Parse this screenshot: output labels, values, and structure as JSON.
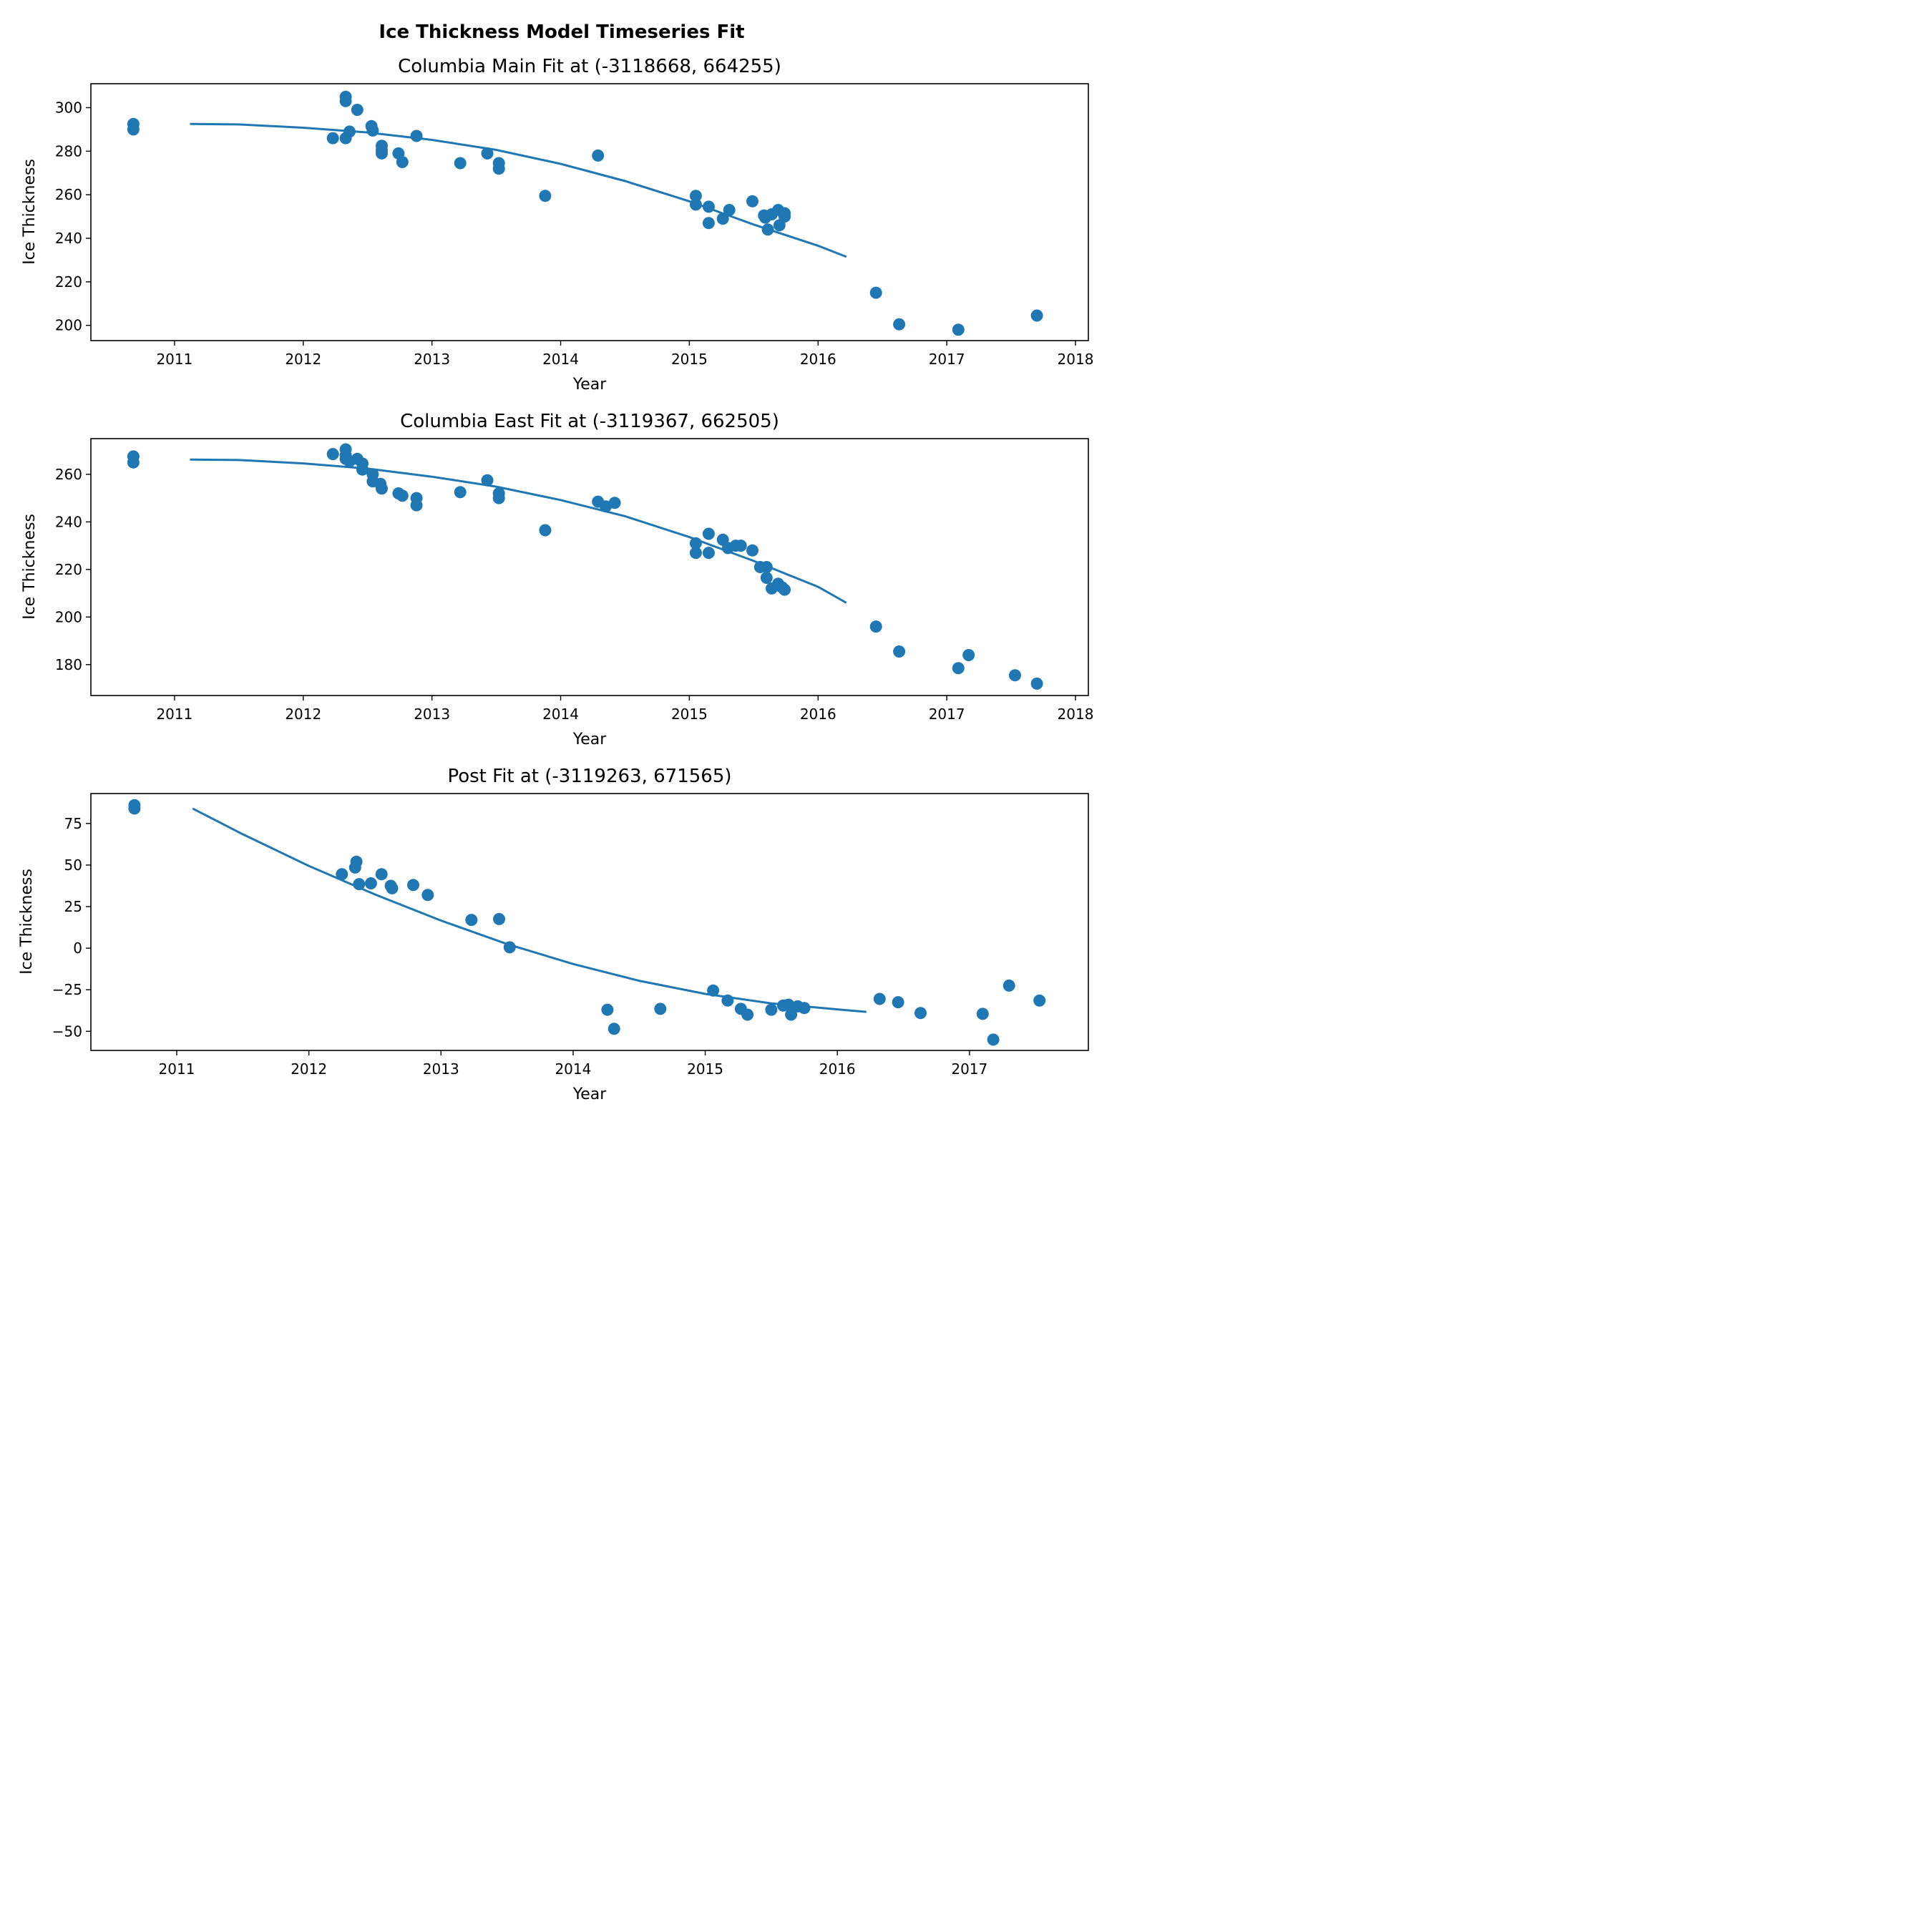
{
  "figure": {
    "suptitle": "Ice Thickness Model Timeseries Fit",
    "marker_color": "#1f77b4",
    "line_color": "#1f77b4"
  },
  "chart_data": [
    {
      "type": "scatter",
      "title": "Columbia Main Fit at (-3118668, 664255)",
      "xlabel": "Year",
      "ylabel": "Ice Thickness",
      "x_ticks": [
        "2011",
        "2012",
        "2013",
        "2014",
        "2015",
        "2016",
        "2017",
        "2018"
      ],
      "y_ticks": [
        200,
        220,
        240,
        260,
        280,
        300
      ],
      "xlim": [
        2010.35,
        2018.1
      ],
      "ylim": [
        193,
        311
      ],
      "grid": false,
      "legend": "none",
      "points": [
        [
          2010.68,
          292.5
        ],
        [
          2010.68,
          290
        ],
        [
          2012.23,
          286
        ],
        [
          2012.33,
          305
        ],
        [
          2012.33,
          303
        ],
        [
          2012.33,
          286
        ],
        [
          2012.36,
          289
        ],
        [
          2012.42,
          299
        ],
        [
          2012.53,
          291.5
        ],
        [
          2012.54,
          289.5
        ],
        [
          2012.61,
          282.5
        ],
        [
          2012.61,
          280.5
        ],
        [
          2012.61,
          279
        ],
        [
          2012.74,
          279
        ],
        [
          2012.77,
          275
        ],
        [
          2012.88,
          287
        ],
        [
          2013.22,
          274.5
        ],
        [
          2013.43,
          279
        ],
        [
          2013.52,
          274.5
        ],
        [
          2013.52,
          272
        ],
        [
          2013.88,
          259.5
        ],
        [
          2014.29,
          278
        ],
        [
          2015.05,
          259.5
        ],
        [
          2015.05,
          255.5
        ],
        [
          2015.15,
          254.5
        ],
        [
          2015.15,
          247
        ],
        [
          2015.26,
          249
        ],
        [
          2015.31,
          253
        ],
        [
          2015.49,
          257
        ],
        [
          2015.58,
          250.5
        ],
        [
          2015.59,
          249.5
        ],
        [
          2015.61,
          244
        ],
        [
          2015.64,
          251
        ],
        [
          2015.69,
          253
        ],
        [
          2015.7,
          246
        ],
        [
          2015.74,
          251.5
        ],
        [
          2015.74,
          250
        ],
        [
          2016.45,
          215
        ],
        [
          2016.63,
          200.5
        ],
        [
          2017.09,
          198
        ],
        [
          2017.7,
          204.5
        ]
      ],
      "fit_line": [
        [
          2011.12,
          292.5
        ],
        [
          2011.5,
          292.3
        ],
        [
          2012.0,
          290.8
        ],
        [
          2012.5,
          288.6
        ],
        [
          2013.0,
          285.2
        ],
        [
          2013.5,
          280.6
        ],
        [
          2014.0,
          274.2
        ],
        [
          2014.5,
          266.3
        ],
        [
          2015.0,
          257.0
        ],
        [
          2015.5,
          246.3
        ],
        [
          2016.0,
          236.6
        ],
        [
          2016.22,
          231.5
        ]
      ]
    },
    {
      "type": "scatter",
      "title": "Columbia East Fit at (-3119367, 662505)",
      "xlabel": "Year",
      "ylabel": "Ice Thickness",
      "x_ticks": [
        "2011",
        "2012",
        "2013",
        "2014",
        "2015",
        "2016",
        "2017",
        "2018"
      ],
      "y_ticks": [
        180,
        200,
        220,
        240,
        260
      ],
      "xlim": [
        2010.35,
        2018.1
      ],
      "ylim": [
        167,
        275
      ],
      "grid": false,
      "legend": "none",
      "points": [
        [
          2010.68,
          267.5
        ],
        [
          2010.68,
          265
        ],
        [
          2012.23,
          268.5
        ],
        [
          2012.33,
          270.5
        ],
        [
          2012.33,
          266.5
        ],
        [
          2012.33,
          268
        ],
        [
          2012.36,
          265.5
        ],
        [
          2012.42,
          266.5
        ],
        [
          2012.46,
          264.5
        ],
        [
          2012.46,
          262
        ],
        [
          2012.54,
          260
        ],
        [
          2012.54,
          257
        ],
        [
          2012.6,
          256
        ],
        [
          2012.61,
          254
        ],
        [
          2012.74,
          252
        ],
        [
          2012.77,
          251
        ],
        [
          2012.88,
          250
        ],
        [
          2012.88,
          247
        ],
        [
          2013.22,
          252.5
        ],
        [
          2013.43,
          257.5
        ],
        [
          2013.52,
          252
        ],
        [
          2013.52,
          250
        ],
        [
          2013.88,
          236.5
        ],
        [
          2014.29,
          248.5
        ],
        [
          2014.35,
          246.5
        ],
        [
          2014.42,
          248
        ],
        [
          2015.05,
          231
        ],
        [
          2015.05,
          227
        ],
        [
          2015.15,
          235
        ],
        [
          2015.15,
          227
        ],
        [
          2015.26,
          232.5
        ],
        [
          2015.3,
          229
        ],
        [
          2015.36,
          230
        ],
        [
          2015.4,
          230
        ],
        [
          2015.49,
          228
        ],
        [
          2015.55,
          221
        ],
        [
          2015.6,
          221
        ],
        [
          2015.6,
          216.5
        ],
        [
          2015.64,
          212
        ],
        [
          2015.69,
          214
        ],
        [
          2015.72,
          212.5
        ],
        [
          2015.74,
          211.5
        ],
        [
          2016.45,
          196
        ],
        [
          2016.63,
          185.5
        ],
        [
          2017.09,
          178.5
        ],
        [
          2017.17,
          184
        ],
        [
          2017.53,
          175.5
        ],
        [
          2017.7,
          172
        ]
      ],
      "fit_line": [
        [
          2011.12,
          266.2
        ],
        [
          2011.5,
          266.0
        ],
        [
          2012.0,
          264.6
        ],
        [
          2012.5,
          262.4
        ],
        [
          2013.0,
          259.0
        ],
        [
          2013.5,
          254.8
        ],
        [
          2014.0,
          249.2
        ],
        [
          2014.5,
          242.4
        ],
        [
          2015.0,
          233.6
        ],
        [
          2015.5,
          223.6
        ],
        [
          2016.0,
          212.7
        ],
        [
          2016.22,
          206
        ]
      ]
    },
    {
      "type": "scatter",
      "title": "Post Fit at (-3119263, 671565)",
      "xlabel": "Year",
      "ylabel": "Ice Thickness",
      "x_ticks": [
        "2011",
        "2012",
        "2013",
        "2014",
        "2015",
        "2016",
        "2017"
      ],
      "y_ticks": [
        "−50",
        "−25",
        "0",
        "25",
        "50",
        "75"
      ],
      "xlim": [
        2010.35,
        2017.9
      ],
      "ylim": [
        -61.5,
        93
      ],
      "grid": false,
      "legend": "none",
      "points": [
        [
          2010.68,
          86
        ],
        [
          2010.68,
          84
        ],
        [
          2012.25,
          44.5
        ],
        [
          2012.35,
          48.5
        ],
        [
          2012.36,
          52
        ],
        [
          2012.38,
          38.5
        ],
        [
          2012.47,
          39
        ],
        [
          2012.55,
          44.5
        ],
        [
          2012.62,
          37.5
        ],
        [
          2012.63,
          36
        ],
        [
          2012.79,
          38
        ],
        [
          2012.9,
          32
        ],
        [
          2013.23,
          17
        ],
        [
          2013.44,
          17.5
        ],
        [
          2013.52,
          0.5
        ],
        [
          2014.26,
          -37
        ],
        [
          2014.31,
          -48.5
        ],
        [
          2014.66,
          -36.5
        ],
        [
          2015.06,
          -25.5
        ],
        [
          2015.17,
          -31.5
        ],
        [
          2015.27,
          -36.5
        ],
        [
          2015.32,
          -40
        ],
        [
          2015.5,
          -37
        ],
        [
          2015.59,
          -34.5
        ],
        [
          2015.63,
          -34
        ],
        [
          2015.65,
          -40
        ],
        [
          2015.7,
          -35
        ],
        [
          2015.75,
          -36
        ],
        [
          2016.32,
          -30.5
        ],
        [
          2016.46,
          -32.5
        ],
        [
          2016.63,
          -39
        ],
        [
          2017.1,
          -39.5
        ],
        [
          2017.18,
          -55
        ],
        [
          2017.3,
          -22.5
        ],
        [
          2017.53,
          -31.5
        ]
      ],
      "fit_line": [
        [
          2011.12,
          84
        ],
        [
          2011.5,
          68.5
        ],
        [
          2012.0,
          49.5
        ],
        [
          2012.5,
          32.3
        ],
        [
          2013.0,
          16.6
        ],
        [
          2013.5,
          2.5
        ],
        [
          2014.0,
          -9.5
        ],
        [
          2014.5,
          -19.6
        ],
        [
          2015.0,
          -27.5
        ],
        [
          2015.5,
          -33.2
        ],
        [
          2016.0,
          -36.8
        ],
        [
          2016.22,
          -38.3
        ]
      ]
    }
  ]
}
